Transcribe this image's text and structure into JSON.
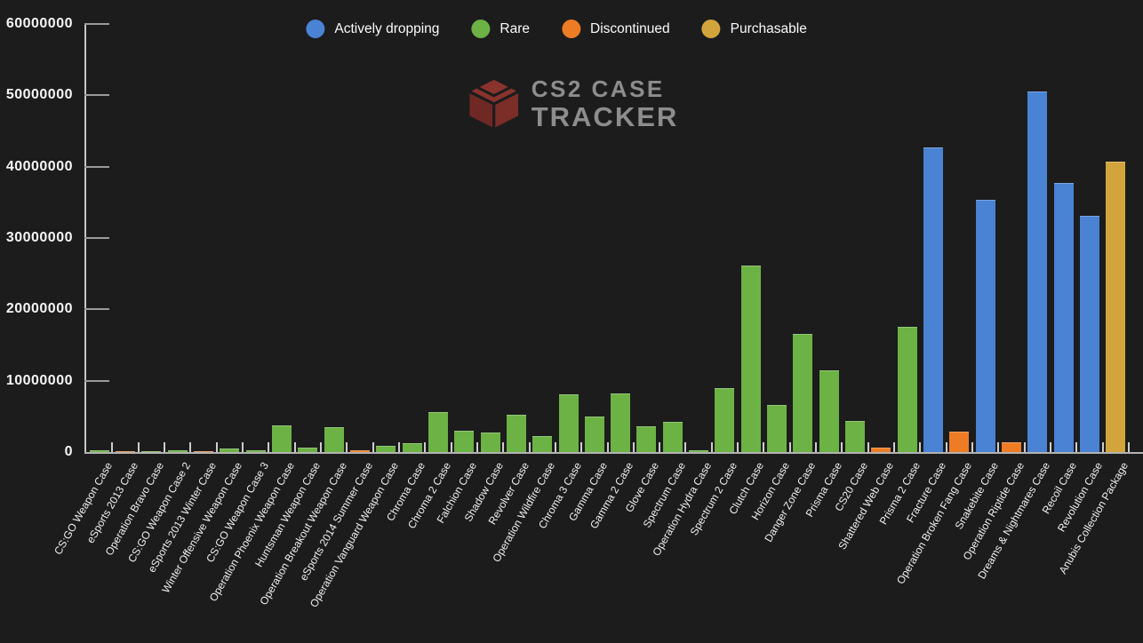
{
  "legend": {
    "items": [
      {
        "key": "actively_dropping",
        "label": "Actively dropping",
        "color": "#4a82d4"
      },
      {
        "key": "rare",
        "label": "Rare",
        "color": "#6cb244"
      },
      {
        "key": "discontinued",
        "label": "Discontinued",
        "color": "#ee7c25"
      },
      {
        "key": "purchasable",
        "label": "Purchasable",
        "color": "#d2a53c"
      }
    ]
  },
  "logo": {
    "line1": "CS2 CASE",
    "line2": "TRACKER",
    "icon": "case-cube-icon",
    "icon_color": "#84302a",
    "text_color": "#8d8d8d"
  },
  "chart_data": {
    "type": "bar",
    "title": "",
    "xlabel": "",
    "ylabel": "",
    "ylim": [
      0,
      60000000
    ],
    "y_ticks": [
      0,
      10000000,
      20000000,
      30000000,
      40000000,
      50000000,
      60000000
    ],
    "grid": false,
    "legend_position": "top-center",
    "categories": [
      "CS:GO Weapon Case",
      "eSports 2013 Case",
      "Operation Bravo Case",
      "CS:GO Weapon Case 2",
      "eSports 2013 Winter Case",
      "Winter Offensive Weapon Case",
      "CS:GO Weapon Case 3",
      "Operation Phoenix Weapon Case",
      "Huntsman Weapon Case",
      "Operation Breakout Weapon Case",
      "eSports 2014 Summer Case",
      "Operation Vanguard Weapon Case",
      "Chroma Case",
      "Chroma 2 Case",
      "Falchion Case",
      "Shadow Case",
      "Revolver Case",
      "Operation Wildfire Case",
      "Chroma 3 Case",
      "Gamma Case",
      "Gamma 2 Case",
      "Glove Case",
      "Spectrum Case",
      "Operation Hydra Case",
      "Spectrum 2 Case",
      "Clutch Case",
      "Horizon Case",
      "Danger Zone Case",
      "Prisma Case",
      "CS20 Case",
      "Shattered Web Case",
      "Prisma 2 Case",
      "Fracture Case",
      "Operation Broken Fang Case",
      "Snakebite Case",
      "Operation Riptide Case",
      "Dreams & Nightmares Case",
      "Recoil Case",
      "Revolution Case",
      "Anubis Collection Package"
    ],
    "values": [
      200000,
      130000,
      160000,
      250000,
      170000,
      500000,
      300000,
      3700000,
      600000,
      3500000,
      300000,
      900000,
      1300000,
      5600000,
      3000000,
      2700000,
      5200000,
      2300000,
      8100000,
      5000000,
      8200000,
      3600000,
      4200000,
      200000,
      9000000,
      26100000,
      6600000,
      16600000,
      11400000,
      4400000,
      600000,
      17500000,
      42700000,
      2900000,
      35400000,
      1400000,
      50600000,
      37700000,
      33100000,
      40700000
    ],
    "statuses": [
      "rare",
      "discontinued",
      "rare",
      "rare",
      "discontinued",
      "rare",
      "rare",
      "rare",
      "rare",
      "rare",
      "discontinued",
      "rare",
      "rare",
      "rare",
      "rare",
      "rare",
      "rare",
      "rare",
      "rare",
      "rare",
      "rare",
      "rare",
      "rare",
      "rare",
      "rare",
      "rare",
      "rare",
      "rare",
      "rare",
      "rare",
      "discontinued",
      "rare",
      "actively_dropping",
      "discontinued",
      "actively_dropping",
      "discontinued",
      "actively_dropping",
      "actively_dropping",
      "actively_dropping",
      "purchasable"
    ],
    "status_colors": {
      "actively_dropping": "#4a82d4",
      "rare": "#6cb244",
      "discontinued": "#ee7c25",
      "purchasable": "#d2a53c"
    }
  }
}
